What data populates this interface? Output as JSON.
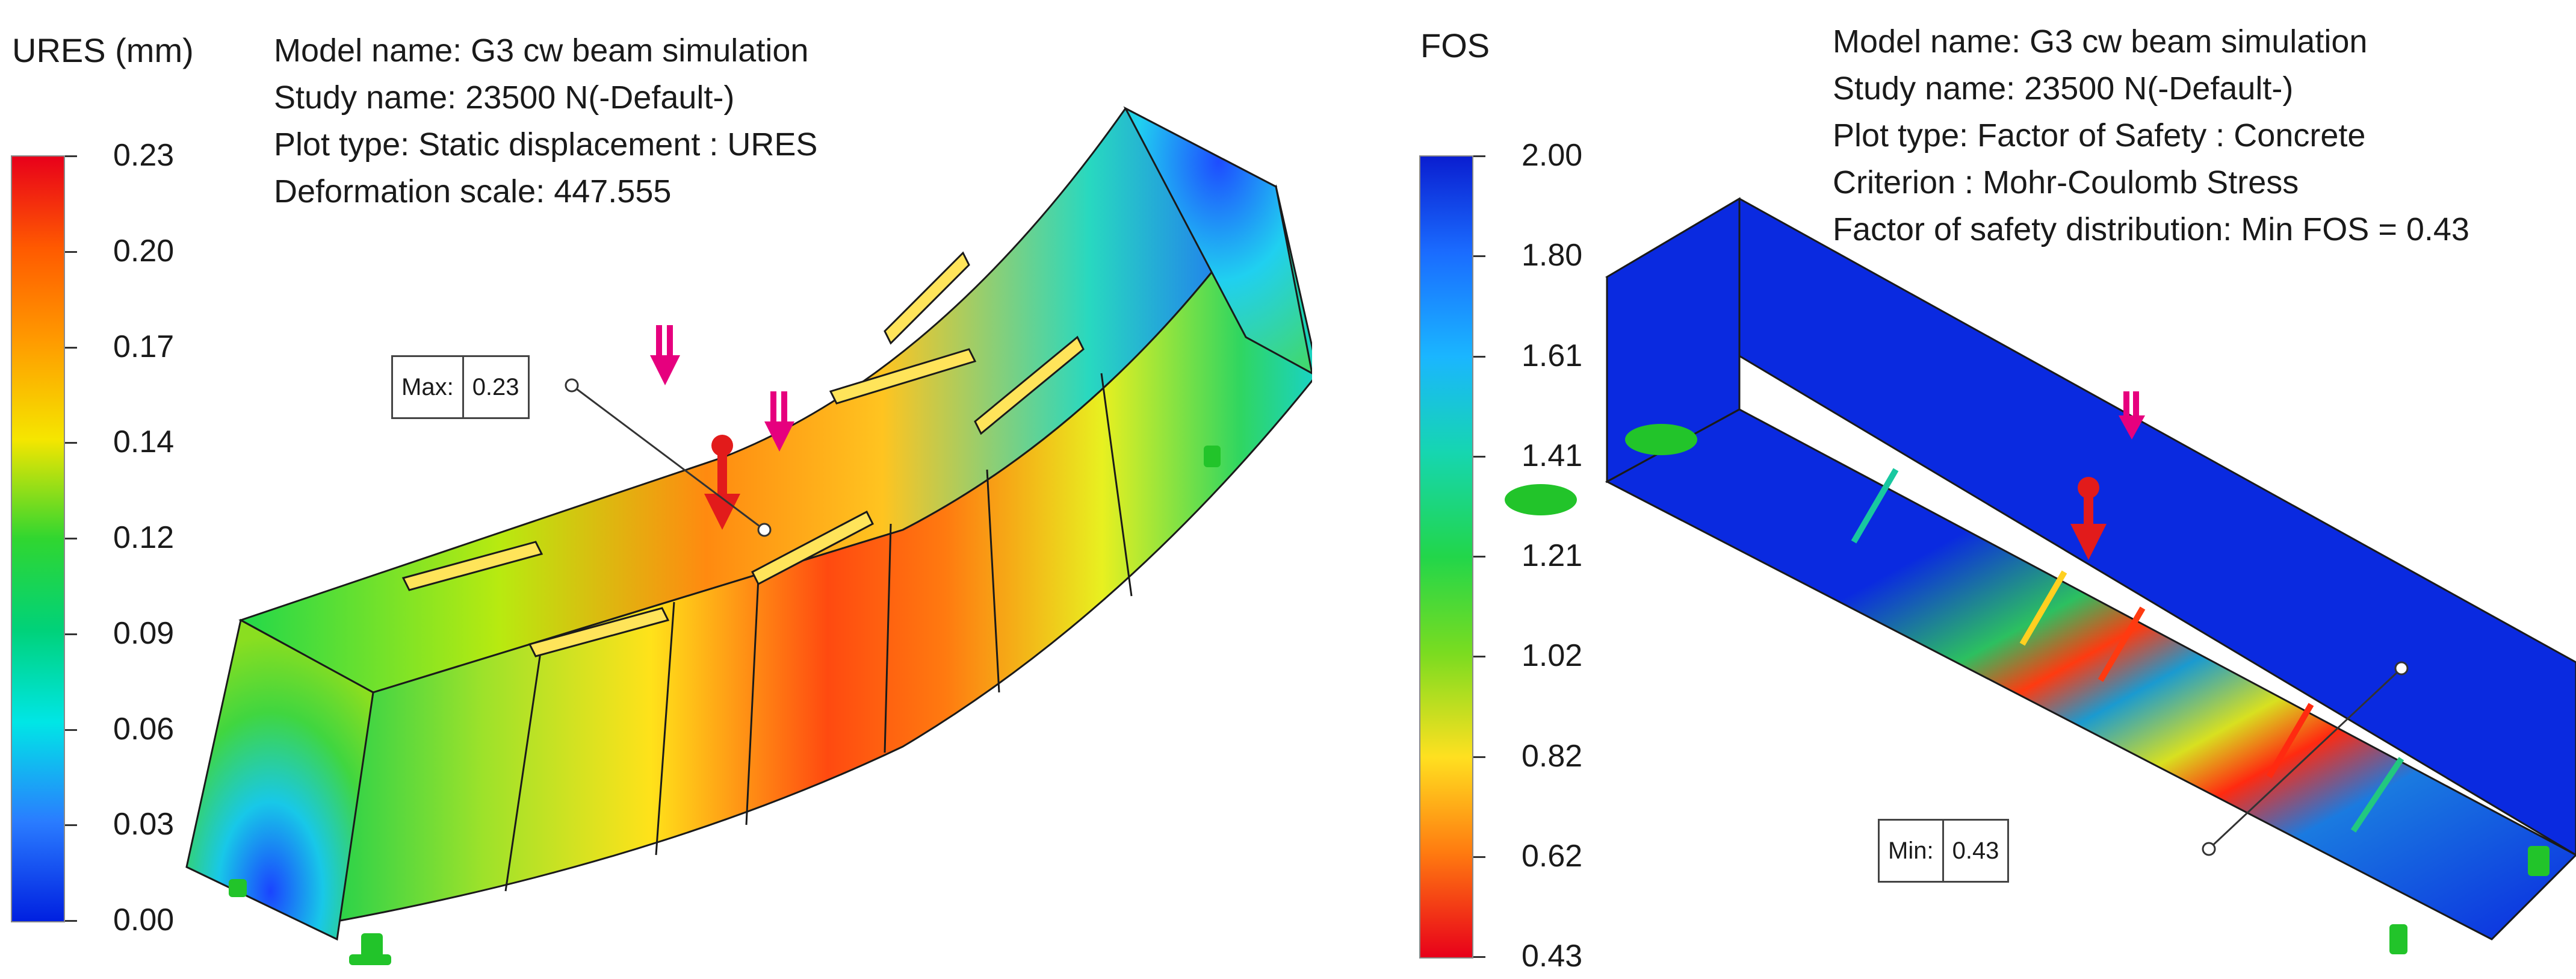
{
  "left": {
    "legend_title": "URES (mm)",
    "ticks": [
      "0.23",
      "0.20",
      "0.17",
      "0.14",
      "0.12",
      "0.09",
      "0.06",
      "0.03",
      "0.00"
    ],
    "info": [
      "Model name: G3 cw beam simulation",
      "Study name: 23500 N(-Default-)",
      "Plot type: Static displacement : URES",
      "Deformation scale: 447.555"
    ],
    "callout": {
      "label": "Max:",
      "value": "0.23"
    }
  },
  "right": {
    "legend_title": "FOS",
    "ticks": [
      "2.00",
      "1.80",
      "1.61",
      "1.41",
      "1.21",
      "1.02",
      "0.82",
      "0.62",
      "0.43"
    ],
    "info": [
      "Model name: G3 cw beam simulation",
      "Study name: 23500 N(-Default-)",
      "Plot type: Factor of Safety : Concrete",
      "Criterion : Mohr-Coulomb Stress",
      "Factor of safety distribution: Min FOS = 0.43"
    ],
    "callout": {
      "label": "Min:",
      "value": "0.43"
    }
  },
  "colors": {
    "load_arrow": "#e6007e",
    "point_load": "#e21b1b",
    "fixture": "#22c42a"
  }
}
